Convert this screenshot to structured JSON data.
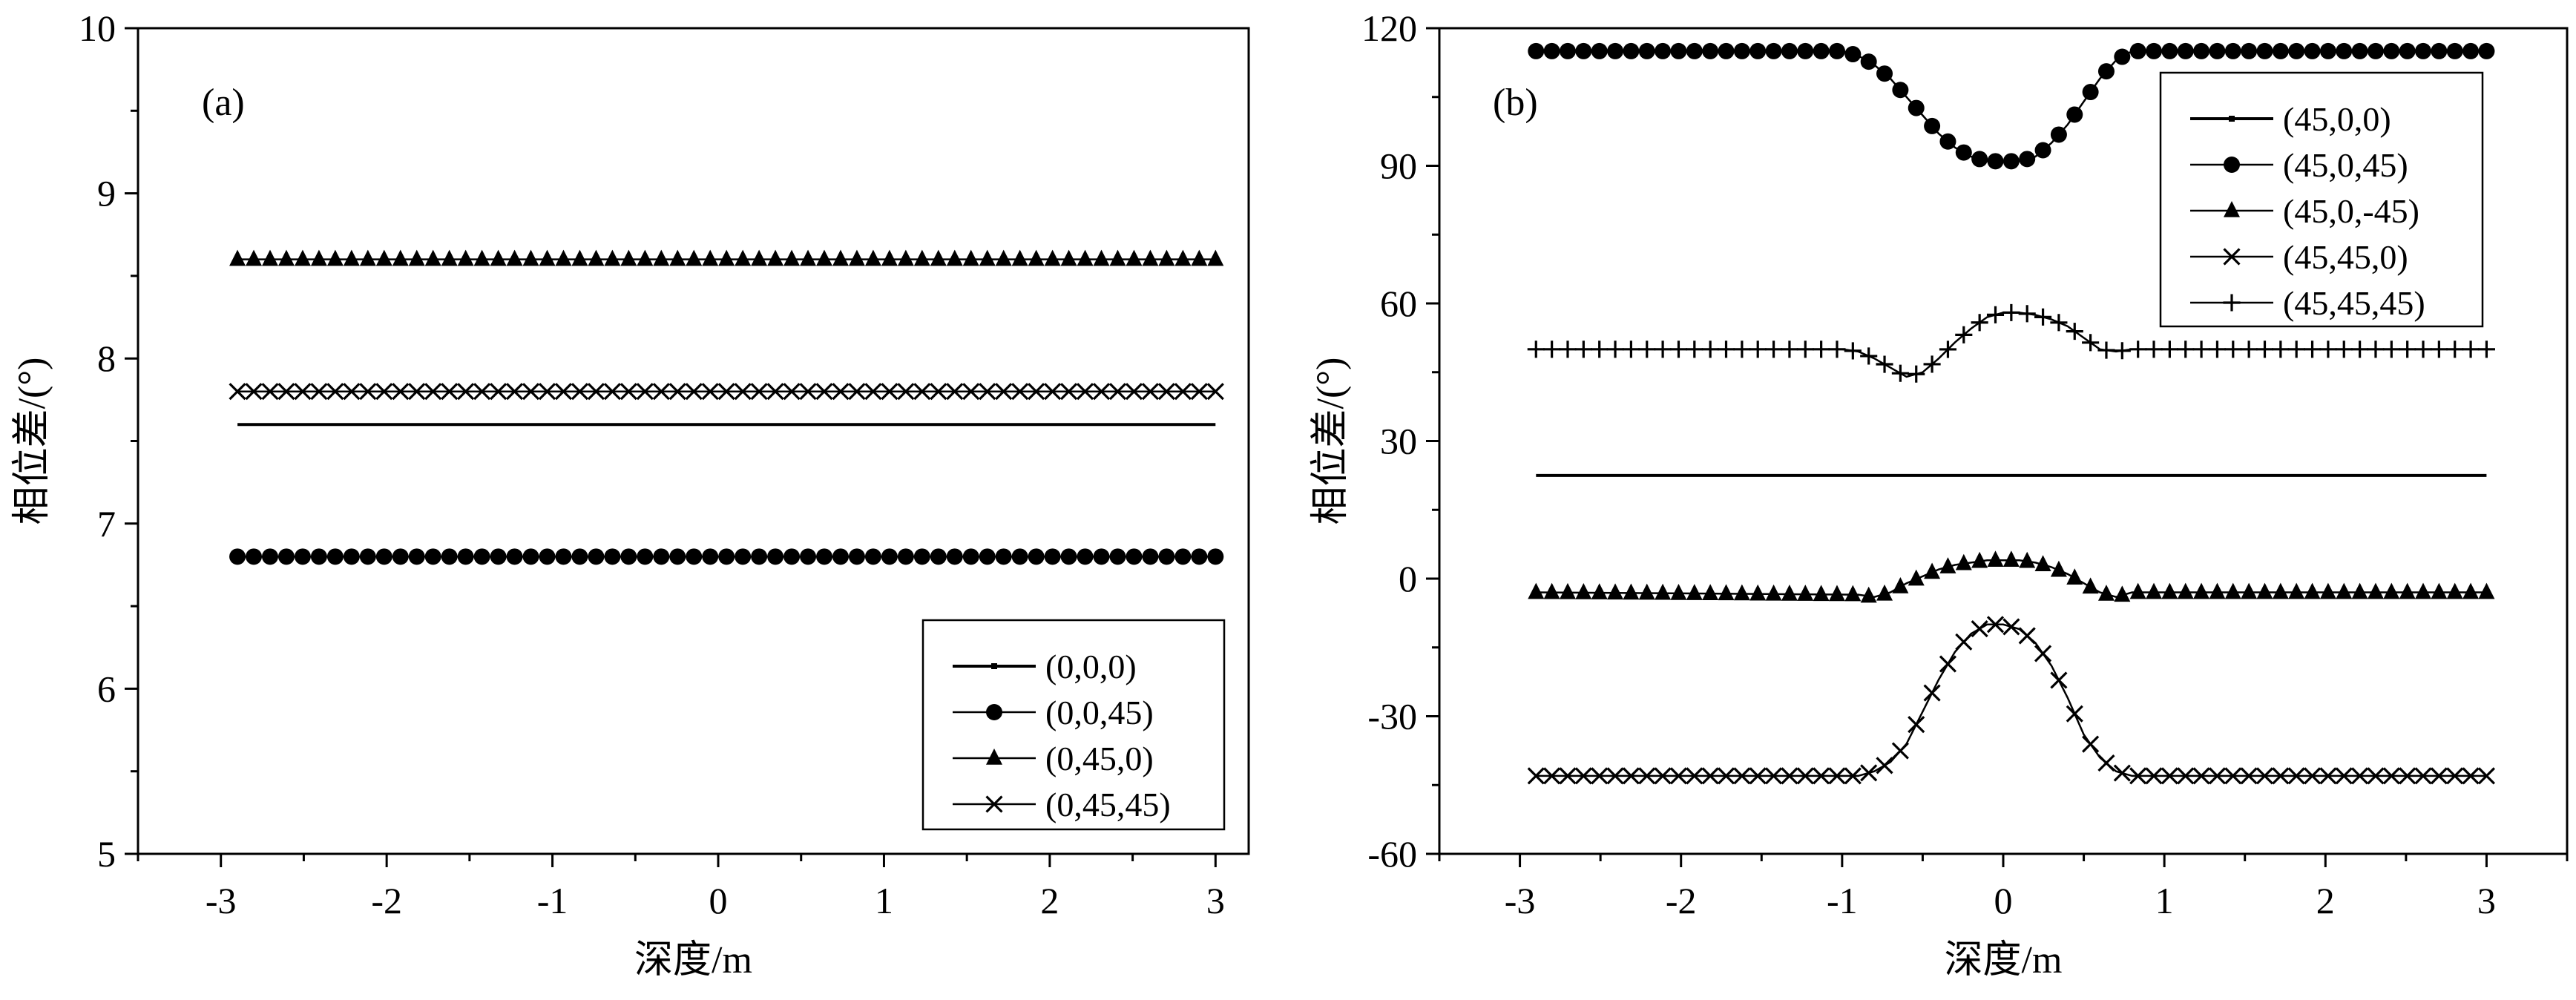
{
  "chart_data": [
    {
      "type": "line",
      "panel_label": "(a)",
      "xlabel": "深度/m",
      "ylabel": "相位差/(°)",
      "xlim": [
        -3.5,
        3.2
      ],
      "ylim": [
        5,
        10
      ],
      "xticks": [
        -3,
        -2,
        -1,
        0,
        1,
        2,
        3
      ],
      "yticks": [
        5,
        6,
        7,
        8,
        9,
        10
      ],
      "xtick_labels": [
        "-3",
        "-2",
        "-1",
        "0",
        "1",
        "2",
        "3"
      ],
      "ytick_labels": [
        "5",
        "6",
        "7",
        "8",
        "9",
        "10"
      ],
      "legend_position": "bottom-right",
      "series": [
        {
          "name": "(0,0,0)",
          "marker": "none",
          "x": [
            -2.9,
            3.0
          ],
          "y": [
            7.6,
            7.6
          ]
        },
        {
          "name": "(0,0,45)",
          "marker": "circle",
          "x": [
            -2.9,
            3.0
          ],
          "y": [
            6.8,
            6.8
          ]
        },
        {
          "name": "(0,45,0)",
          "marker": "triangle",
          "x": [
            -2.9,
            3.0
          ],
          "y": [
            8.6,
            8.6
          ]
        },
        {
          "name": "(0,45,45)",
          "marker": "cross",
          "x": [
            -2.9,
            3.0
          ],
          "y": [
            7.8,
            7.8
          ]
        }
      ]
    },
    {
      "type": "line",
      "panel_label": "(b)",
      "xlabel": "深度/m",
      "ylabel": "相位差/(°)",
      "xlim": [
        -3.5,
        3.5
      ],
      "ylim": [
        -60,
        120
      ],
      "xticks": [
        -3,
        -2,
        -1,
        0,
        1,
        2,
        3
      ],
      "yticks": [
        -60,
        -30,
        0,
        30,
        60,
        90,
        120
      ],
      "xtick_labels": [
        "-3",
        "-2",
        "-1",
        "0",
        "1",
        "2",
        "3"
      ],
      "ytick_labels": [
        "-60",
        "-30",
        "0",
        "30",
        "60",
        "90",
        "120"
      ],
      "legend_position": "top-right",
      "series": [
        {
          "name": "(45,0,0)",
          "marker": "none",
          "x": [
            -2.9,
            3.0
          ],
          "y": [
            22.5,
            22.5
          ]
        },
        {
          "name": "(45,0,45)",
          "marker": "circle",
          "x": [
            -2.9,
            -1.0,
            -0.9,
            -0.8,
            -0.7,
            -0.6,
            -0.5,
            -0.4,
            -0.3,
            -0.2,
            -0.1,
            0.0,
            0.1,
            0.2,
            0.3,
            0.4,
            0.5,
            0.6,
            0.7,
            0.8,
            3.0
          ],
          "y": [
            115,
            115,
            114,
            112,
            109,
            105,
            101,
            97,
            94,
            92,
            91,
            91,
            91,
            92,
            95,
            99,
            104,
            109,
            113,
            115,
            115
          ]
        },
        {
          "name": "(45,0,-45)",
          "marker": "triangle",
          "x": [
            -2.9,
            -0.9,
            -0.8,
            -0.7,
            -0.6,
            -0.5,
            -0.4,
            -0.3,
            -0.2,
            -0.1,
            0.0,
            0.1,
            0.2,
            0.3,
            0.4,
            0.5,
            0.6,
            0.7,
            0.8,
            3.0
          ],
          "y": [
            -3,
            -3.5,
            -4,
            -3,
            -1,
            0.5,
            2,
            3,
            3.5,
            4,
            4,
            4,
            3.5,
            2.5,
            1,
            -1,
            -3,
            -4,
            -3,
            -3
          ]
        },
        {
          "name": "(45,45,0)",
          "marker": "cross",
          "x": [
            -2.9,
            -0.9,
            -0.8,
            -0.7,
            -0.6,
            -0.5,
            -0.4,
            -0.3,
            -0.2,
            -0.1,
            0.0,
            0.1,
            0.2,
            0.3,
            0.4,
            0.5,
            0.6,
            0.7,
            0.8,
            3.0
          ],
          "y": [
            -43,
            -43,
            -42,
            -40,
            -36,
            -29,
            -22,
            -16,
            -12,
            -10,
            -10,
            -11,
            -14,
            -19,
            -26,
            -34,
            -39,
            -42,
            -43,
            -43
          ]
        },
        {
          "name": "(45,45,45)",
          "marker": "plus",
          "x": [
            -2.9,
            -1.0,
            -0.9,
            -0.8,
            -0.7,
            -0.6,
            -0.5,
            -0.4,
            -0.3,
            -0.2,
            -0.1,
            0.0,
            0.1,
            0.2,
            0.3,
            0.4,
            0.5,
            0.6,
            0.7,
            0.8,
            3.0
          ],
          "y": [
            50,
            50,
            49.5,
            48,
            46,
            44,
            45,
            48,
            51.5,
            54.5,
            57,
            58,
            58,
            57.5,
            56.5,
            55,
            52.5,
            50,
            49.5,
            50,
            50
          ]
        }
      ]
    }
  ]
}
